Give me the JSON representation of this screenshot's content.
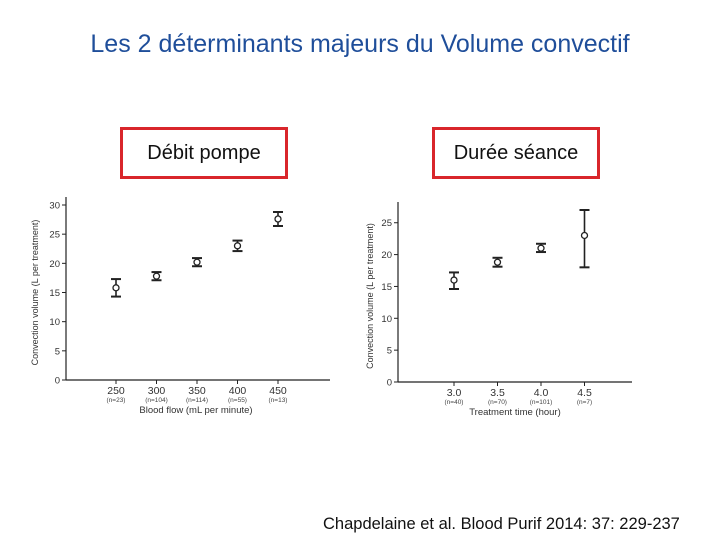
{
  "title": "Les 2 déterminants majeurs du Volume convectif",
  "boxes": {
    "left": "Débit pompe",
    "right": "Durée séance"
  },
  "citation": "Chapdelaine et al. Blood Purif 2014: 37: 229-237",
  "colors": {
    "title": "#1f4e9a",
    "box_border": "#d9262b",
    "axis": "#222222"
  },
  "chart_data": [
    {
      "type": "scatter",
      "xlabel": "Blood flow (mL per minute)",
      "ylabel": "Convection volume (L per treatment)",
      "ylim": [
        0,
        30
      ],
      "yticks": [
        "0",
        "5",
        "10",
        "15",
        "20",
        "25",
        "30"
      ],
      "categories": [
        "250",
        "300",
        "350",
        "400",
        "450"
      ],
      "counts": [
        "(n=23)",
        "(n=104)",
        "(n=114)",
        "(n=55)",
        "(n=13)"
      ],
      "values": [
        15.8,
        17.8,
        20.2,
        23.0,
        27.6
      ],
      "err_low": [
        14.3,
        17.1,
        19.5,
        22.1,
        26.4
      ],
      "err_high": [
        17.3,
        18.5,
        20.9,
        23.9,
        28.8
      ]
    },
    {
      "type": "scatter",
      "xlabel": "Treatment time (hour)",
      "ylabel": "Convection volume (L per treatment)",
      "ylim": [
        0,
        27
      ],
      "yticks": [
        "0",
        "5",
        "10",
        "15",
        "20",
        "25"
      ],
      "categories": [
        "3.0",
        "3.5",
        "4.0",
        "4.5"
      ],
      "counts": [
        "(n=40)",
        "(n=70)",
        "(n=101)",
        "(n=7)"
      ],
      "values": [
        16.0,
        18.8,
        21.0,
        23.0
      ],
      "err_low": [
        14.6,
        18.1,
        20.4,
        18.0
      ],
      "err_high": [
        17.2,
        19.5,
        21.7,
        27.0
      ]
    }
  ]
}
